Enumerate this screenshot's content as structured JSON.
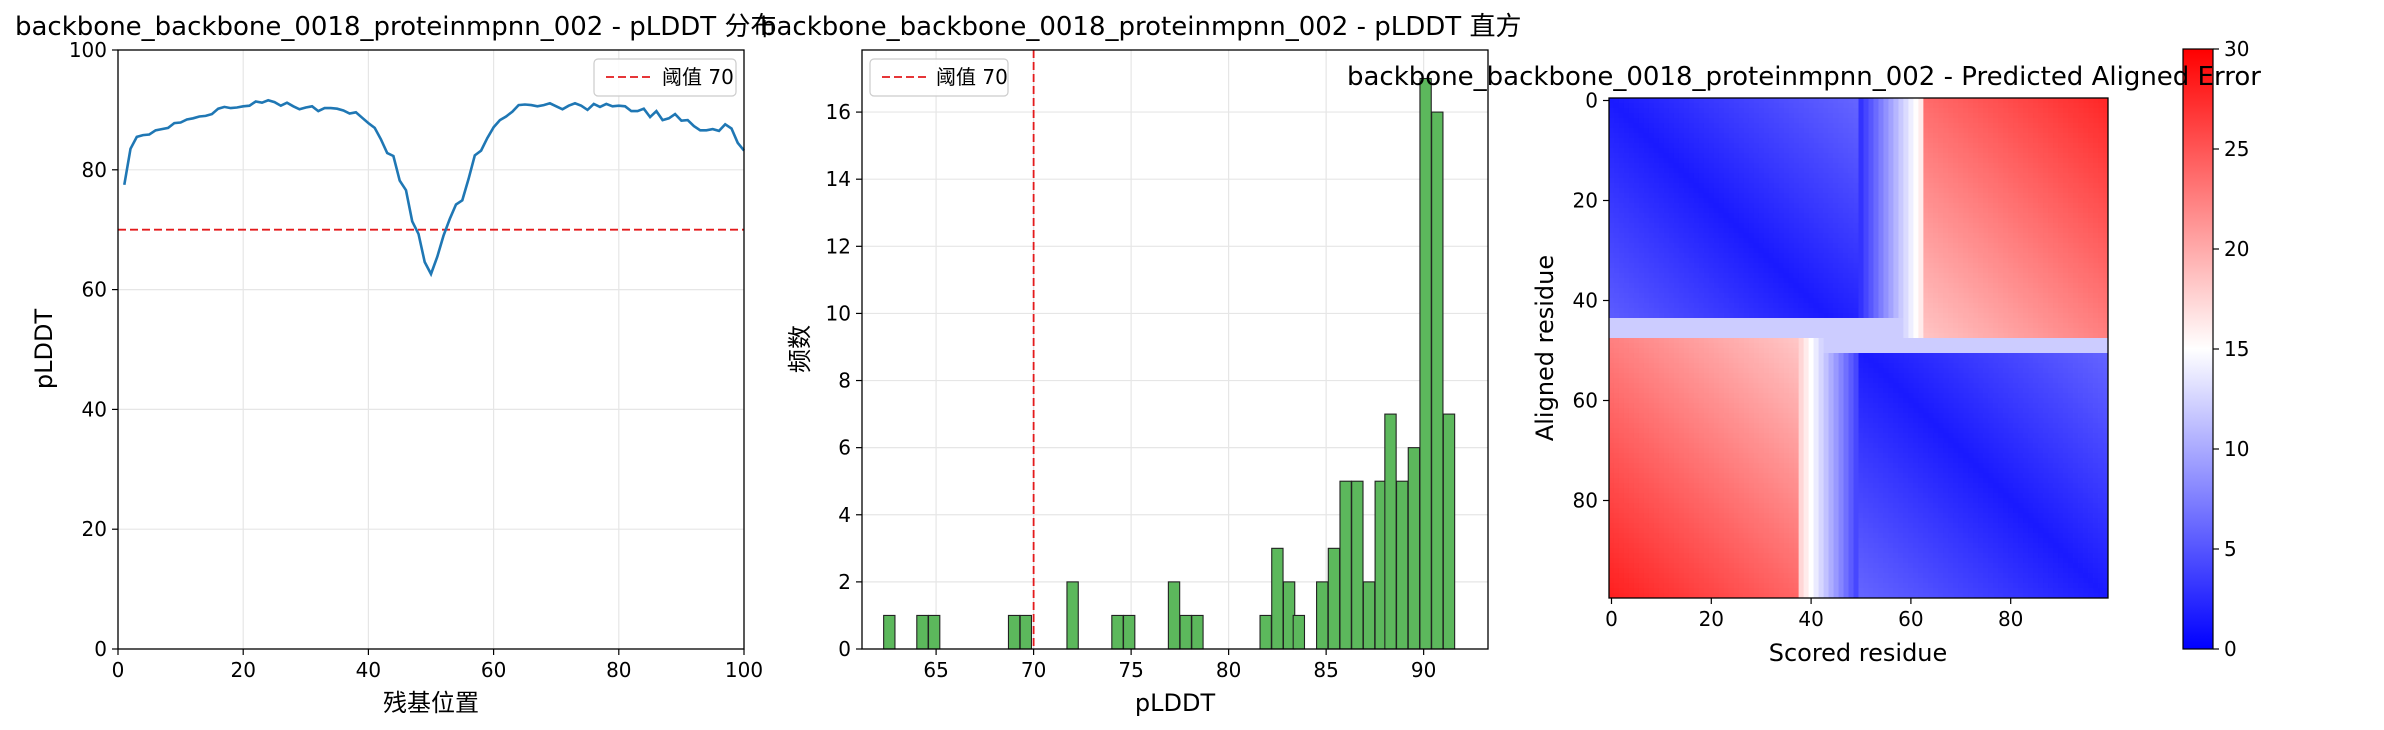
{
  "chart_data": [
    {
      "type": "line",
      "title": "backbone_backbone_0018_proteinmpnn_002 - pLDDT 分布",
      "xlabel": "残基位置",
      "ylabel": "pLDDT",
      "xlim": [
        0,
        100
      ],
      "ylim": [
        0,
        100
      ],
      "xticks": [
        0,
        20,
        40,
        60,
        80,
        100
      ],
      "yticks": [
        0,
        20,
        40,
        60,
        80,
        100
      ],
      "grid": true,
      "legend_position": "top-right",
      "line_color": "#1f77b4",
      "threshold": {
        "value": 70,
        "label": "阈值 70",
        "color": "#e31a1c"
      },
      "x": [
        1,
        2,
        3,
        4,
        5,
        6,
        7,
        8,
        9,
        10,
        11,
        12,
        13,
        14,
        15,
        16,
        17,
        18,
        19,
        20,
        21,
        22,
        23,
        24,
        25,
        26,
        27,
        28,
        29,
        30,
        31,
        32,
        33,
        34,
        35,
        36,
        37,
        38,
        39,
        40,
        41,
        42,
        43,
        44,
        45,
        46,
        47,
        48,
        49,
        50,
        51,
        52,
        53,
        54,
        55,
        56,
        57,
        58,
        59,
        60,
        61,
        62,
        63,
        64,
        65,
        66,
        67,
        68,
        69,
        70,
        71,
        72,
        73,
        74,
        75,
        76,
        77,
        78,
        79,
        80,
        81,
        82,
        83,
        84,
        85,
        86,
        87,
        88,
        89,
        90,
        91,
        92,
        93,
        94,
        95,
        96,
        97,
        98,
        99,
        100
      ],
      "y": [
        77.5,
        83.5,
        85.5,
        85.8,
        85.9,
        86.6,
        86.8,
        87.0,
        87.8,
        87.9,
        88.4,
        88.6,
        88.9,
        89.0,
        89.3,
        90.2,
        90.5,
        90.3,
        90.4,
        90.6,
        90.7,
        91.4,
        91.2,
        91.6,
        91.3,
        90.7,
        91.2,
        90.6,
        90.1,
        90.4,
        90.6,
        89.8,
        90.3,
        90.3,
        90.2,
        89.9,
        89.4,
        89.6,
        88.7,
        87.8,
        87.0,
        85.1,
        82.8,
        82.3,
        78.2,
        76.6,
        71.4,
        69.3,
        64.6,
        62.6,
        65.5,
        69.0,
        71.8,
        74.2,
        74.9,
        78.5,
        82.4,
        83.2,
        85.3,
        87.1,
        88.3,
        88.9,
        89.7,
        90.8,
        90.9,
        90.8,
        90.6,
        90.8,
        91.1,
        90.6,
        90.1,
        90.7,
        91.1,
        90.7,
        90.0,
        91.0,
        90.5,
        91.0,
        90.6,
        90.7,
        90.6,
        89.8,
        89.8,
        90.2,
        88.8,
        89.8,
        88.3,
        88.6,
        89.3,
        88.2,
        88.3,
        87.3,
        86.6,
        86.6,
        86.8,
        86.5,
        87.6,
        86.9,
        84.5,
        83.2
      ]
    },
    {
      "type": "bar",
      "title": "backbone_backbone_0018_proteinmpnn_002 - pLDDT 直方",
      "xlabel": "pLDDT",
      "ylabel": "频数",
      "xlim": [
        61.2,
        93.3
      ],
      "ylim": [
        0,
        17.85
      ],
      "xticks": [
        65,
        70,
        75,
        80,
        85,
        90
      ],
      "yticks": [
        0,
        2,
        4,
        6,
        8,
        10,
        12,
        14,
        16
      ],
      "grid": true,
      "legend_position": "top-left",
      "bar_color": "#5cb85c",
      "bin_width": 0.58,
      "threshold": {
        "value": 70,
        "label": "阈值 70",
        "color": "#e31a1c"
      },
      "bins": [
        62.6,
        64.3,
        64.9,
        69.0,
        69.6,
        72.0,
        74.3,
        74.9,
        77.2,
        77.8,
        78.4,
        81.9,
        82.5,
        83.1,
        83.6,
        84.8,
        85.4,
        86.0,
        86.6,
        87.2,
        87.8,
        88.3,
        88.9,
        89.5,
        90.1,
        90.7,
        91.3
      ],
      "counts": [
        1,
        1,
        1,
        1,
        1,
        2,
        1,
        1,
        2,
        1,
        1,
        1,
        3,
        2,
        1,
        2,
        3,
        5,
        5,
        2,
        5,
        7,
        5,
        6,
        17,
        16,
        7
      ]
    },
    {
      "type": "heatmap",
      "title": "backbone_backbone_0018_proteinmpnn_002 - Predicted Aligned Error",
      "xlabel": "Scored residue",
      "ylabel": "Aligned residue",
      "n_residues": 100,
      "xticks": [
        0,
        20,
        40,
        60,
        80
      ],
      "yticks": [
        0,
        20,
        40,
        60,
        80
      ],
      "colormap": "bwr",
      "colorbar_range": [
        0,
        30
      ],
      "colorbar_ticks": [
        0,
        5,
        10,
        15,
        20,
        25,
        30
      ]
    }
  ]
}
